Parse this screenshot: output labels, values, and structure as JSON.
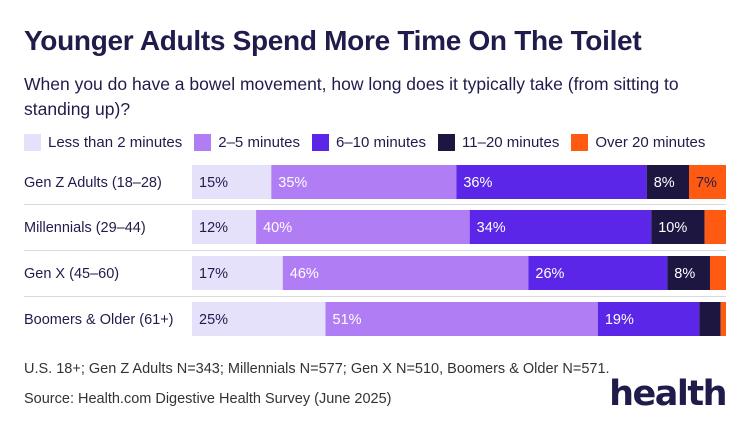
{
  "title": "Younger Adults Spend More Time On The Toilet",
  "subtitle": "When you do have a bowel movement, how long does it typically take (from sitting to standing up)?",
  "note": "U.S. 18+; Gen Z Adults N=343; Millennials N=577; Gen X N=510, Boomers & Older N=571.",
  "source": "Source: Health.com Digestive Health Survey (June 2025)",
  "logo": "health",
  "chart_data": {
    "type": "bar",
    "orientation": "horizontal",
    "stacked": true,
    "unit": "%",
    "categories": [
      "Gen Z Adults (18–28)",
      "Millennials (29–44)",
      "Gen X (45–60)",
      "Boomers & Older (61+)"
    ],
    "series": [
      {
        "name": "Less than 2 minutes",
        "color": "#e6e1fb",
        "values": [
          15,
          12,
          17,
          25
        ],
        "labels": [
          "15%",
          "12%",
          "17%",
          "25%"
        ]
      },
      {
        "name": "2–5 minutes",
        "color": "#b07df5",
        "values": [
          35,
          40,
          46,
          51
        ],
        "labels": [
          "35%",
          "40%",
          "46%",
          "51%"
        ]
      },
      {
        "name": "6–10 minutes",
        "color": "#5b26e8",
        "values": [
          36,
          34,
          26,
          19
        ],
        "labels": [
          "36%",
          "34%",
          "26%",
          "19%"
        ]
      },
      {
        "name": "11–20 minutes",
        "color": "#1c1640",
        "values": [
          8,
          10,
          8,
          4
        ],
        "labels": [
          "8%",
          "10%",
          "8%",
          ""
        ]
      },
      {
        "name": "Over 20 minutes",
        "color": "#ff5a12",
        "values": [
          7,
          4,
          3,
          1
        ],
        "labels": [
          "7%",
          "",
          "",
          ""
        ]
      }
    ],
    "label_colors": [
      "#1f1c4b",
      "#ffffff",
      "#ffffff",
      "#ffffff",
      "#1f1c4b"
    ],
    "grid": false,
    "legend_position": "top"
  }
}
